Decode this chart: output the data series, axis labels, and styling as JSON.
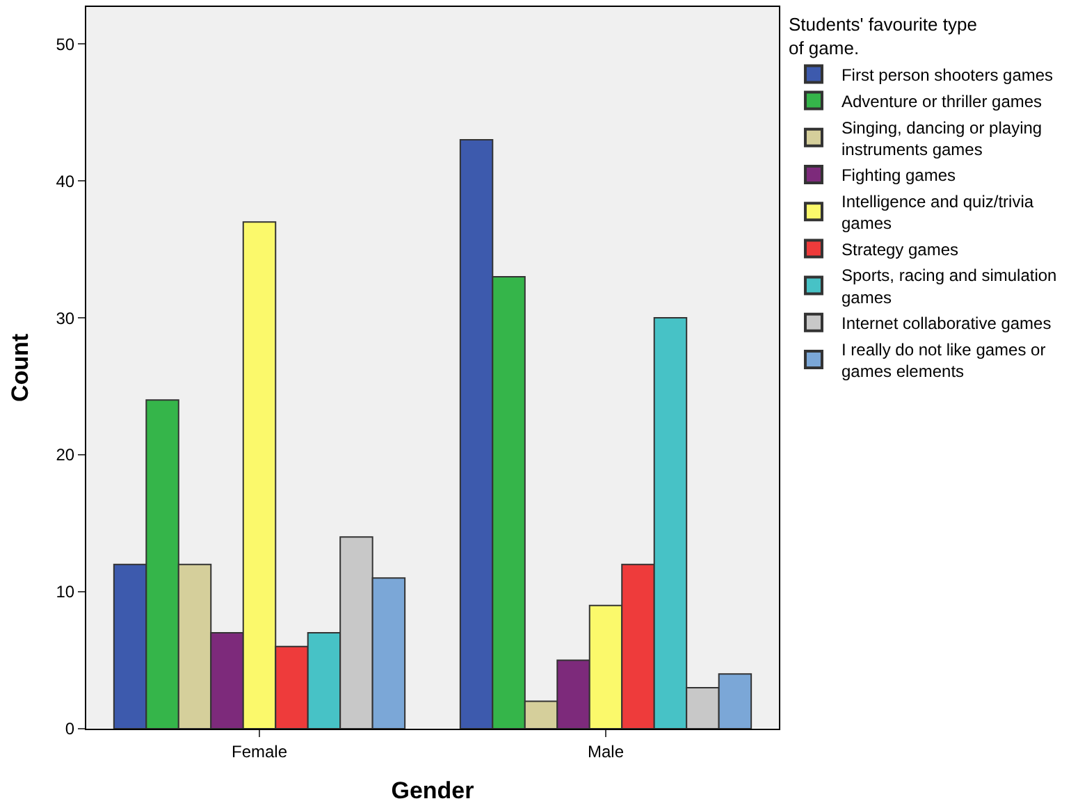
{
  "chart_data": {
    "type": "bar",
    "xlabel": "Gender",
    "ylabel": "Count",
    "legend_title": "Students' favourite type of game.",
    "categories": [
      "Female",
      "Male"
    ],
    "series": [
      {
        "name": "First person shooters games",
        "color": "#3d5aad",
        "values": [
          12,
          43
        ]
      },
      {
        "name": "Adventure or thriller games",
        "color": "#35b54a",
        "values": [
          24,
          33
        ]
      },
      {
        "name": "Singing, dancing or playing instruments games",
        "color": "#d5cf9b",
        "values": [
          12,
          2
        ]
      },
      {
        "name": "Fighting games",
        "color": "#7d2a7b",
        "values": [
          7,
          5
        ]
      },
      {
        "name": "Intelligence and quiz/trivia games",
        "color": "#fbf96b",
        "values": [
          37,
          9
        ]
      },
      {
        "name": "Strategy games",
        "color": "#ee3b3b",
        "values": [
          6,
          12
        ]
      },
      {
        "name": "Sports, racing and simulation games",
        "color": "#47c2c6",
        "values": [
          7,
          30
        ]
      },
      {
        "name": "Internet collaborative games",
        "color": "#c8c8c8",
        "values": [
          14,
          3
        ]
      },
      {
        "name": "I really do not like games or games elements",
        "color": "#7ba7d7",
        "values": [
          11,
          4
        ]
      }
    ],
    "ylim": [
      0,
      52.7
    ],
    "yticks": [
      0,
      10,
      20,
      30,
      40,
      50
    ],
    "grid": false,
    "legend": "right"
  }
}
